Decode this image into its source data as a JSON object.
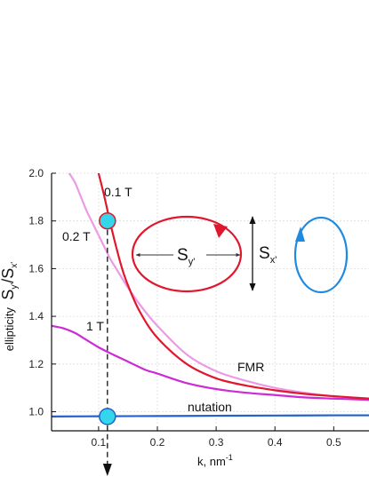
{
  "chart_data": {
    "type": "line",
    "xlabel_prefix": "k, nm",
    "xlabel_exp": "-1",
    "ylabel_word": "ellipticity",
    "ylabel_num": "S",
    "ylabel_num_sub": "y'",
    "ylabel_slash": "/",
    "ylabel_den": "S",
    "ylabel_den_sub": "x'",
    "xlim": [
      0.02,
      0.56
    ],
    "ylim": [
      0.92,
      2.0
    ],
    "xticks": [
      0.1,
      0.2,
      0.3,
      0.4,
      0.5
    ],
    "xtick_labels": [
      "0.1",
      "0.2",
      "0.3",
      "0.4",
      "0.5"
    ],
    "yticks": [
      1.0,
      1.2,
      1.4,
      1.6,
      1.8,
      2.0
    ],
    "ytick_labels": [
      "1.0",
      "1.2",
      "1.4",
      "1.6",
      "1.8",
      "2.0"
    ],
    "grid": true,
    "series": [
      {
        "name": "0.1 T",
        "color": "#e0182d",
        "x": [
          0.1,
          0.11,
          0.12,
          0.13,
          0.14,
          0.15,
          0.17,
          0.2,
          0.25,
          0.3,
          0.35,
          0.4,
          0.45,
          0.5,
          0.56
        ],
        "y": [
          2.0,
          1.9,
          1.79,
          1.69,
          1.6,
          1.53,
          1.42,
          1.31,
          1.2,
          1.14,
          1.11,
          1.09,
          1.075,
          1.065,
          1.055
        ]
      },
      {
        "name": "0.2 T",
        "color": "#ec9ae6",
        "x": [
          0.05,
          0.06,
          0.07,
          0.08,
          0.09,
          0.1,
          0.11,
          0.12,
          0.13,
          0.15,
          0.17,
          0.2,
          0.25,
          0.3,
          0.35,
          0.4,
          0.45,
          0.5,
          0.56
        ],
        "y": [
          2.0,
          1.96,
          1.9,
          1.84,
          1.79,
          1.74,
          1.69,
          1.64,
          1.6,
          1.52,
          1.45,
          1.36,
          1.24,
          1.17,
          1.13,
          1.1,
          1.08,
          1.065,
          1.055
        ]
      },
      {
        "name": "1 T",
        "color": "#cc2bd6",
        "x": [
          0.02,
          0.04,
          0.06,
          0.08,
          0.1,
          0.12,
          0.15,
          0.18,
          0.2,
          0.25,
          0.3,
          0.35,
          0.4,
          0.45,
          0.5,
          0.56
        ],
        "y": [
          1.36,
          1.35,
          1.33,
          1.3,
          1.27,
          1.245,
          1.21,
          1.175,
          1.16,
          1.12,
          1.095,
          1.08,
          1.07,
          1.06,
          1.055,
          1.05
        ]
      },
      {
        "name": "nutation",
        "color": "#1f63c9",
        "x": [
          0.02,
          0.1,
          0.2,
          0.3,
          0.4,
          0.5,
          0.56
        ],
        "y": [
          0.98,
          0.981,
          0.982,
          0.983,
          0.984,
          0.985,
          0.985
        ]
      }
    ],
    "markers": [
      {
        "x": 0.115,
        "y": 1.8,
        "fill": "#33d6ea",
        "stroke": "#e0182d"
      },
      {
        "x": 0.115,
        "y": 0.98,
        "fill": "#33d6ea",
        "stroke": "#1f63c9"
      }
    ],
    "vline_x": 0.115,
    "annotations": {
      "t01": "0.1 T",
      "t02": "0.2 T",
      "t1": "1 T",
      "fmr": "FMR",
      "nutation": "nutation"
    },
    "inset": {
      "sy_main": "S",
      "sy_sub": "y'",
      "sx_main": "S",
      "sx_sub": "x'",
      "red_color": "#e0182d",
      "blue_color": "#1f8ae0"
    }
  }
}
